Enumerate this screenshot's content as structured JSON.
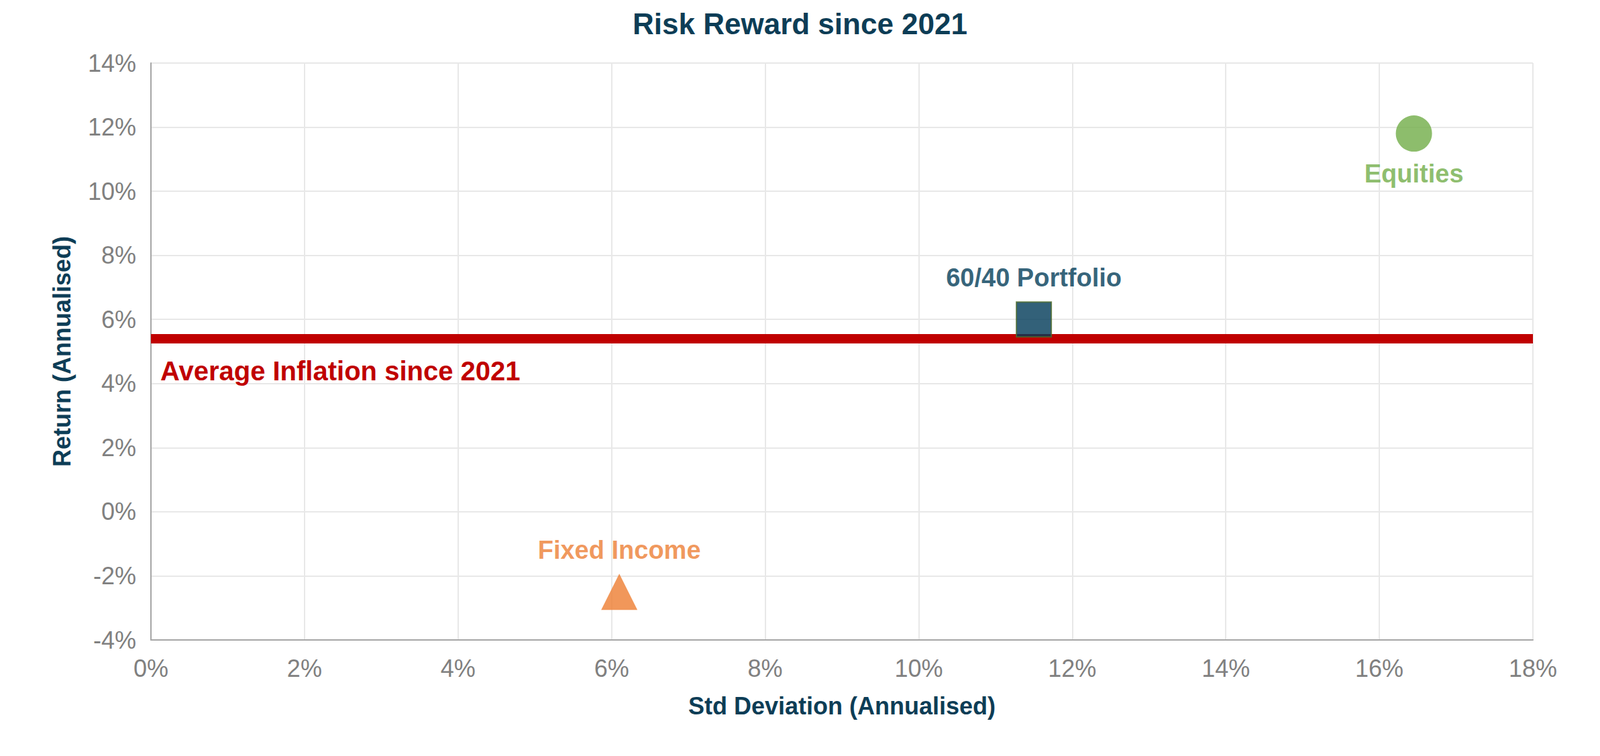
{
  "chart_data": {
    "type": "scatter",
    "title": "Risk Reward since 2021",
    "x_label": "Std Deviation (Annualised)",
    "y_label": "Return (Annualised)",
    "xlim": [
      0,
      18
    ],
    "xticks": [
      {
        "value": 0,
        "label": "0%"
      },
      {
        "value": 2,
        "label": "2%"
      },
      {
        "value": 4,
        "label": "4%"
      },
      {
        "value": 6,
        "label": "6%"
      },
      {
        "value": 8,
        "label": "8%"
      },
      {
        "value": 10,
        "label": "10%"
      },
      {
        "value": 12,
        "label": "12%"
      },
      {
        "value": 14,
        "label": "14%"
      },
      {
        "value": 16,
        "label": "16%"
      },
      {
        "value": 18,
        "label": "18%"
      }
    ],
    "ylim": [
      -4,
      14
    ],
    "yticks": [
      {
        "value": -4,
        "label": "-4%"
      },
      {
        "value": -2,
        "label": "-2%"
      },
      {
        "value": 0,
        "label": "0%"
      },
      {
        "value": 2,
        "label": "2%"
      },
      {
        "value": 4,
        "label": "4%"
      },
      {
        "value": 6,
        "label": "6%"
      },
      {
        "value": 8,
        "label": "8%"
      },
      {
        "value": 10,
        "label": "10%"
      },
      {
        "value": 12,
        "label": "12%"
      },
      {
        "value": 14,
        "label": "14%"
      }
    ],
    "grid": true,
    "series": [
      {
        "name": "Average Inflation since 2021",
        "type": "line",
        "color": "#c00000",
        "x": [
          0,
          18
        ],
        "values": [
          5.4,
          5.4
        ]
      },
      {
        "name": "Fixed Income",
        "type": "scatter",
        "marker": "triangle",
        "color": "#ed7d31",
        "x": [
          6.1
        ],
        "values": [
          -2.5
        ]
      },
      {
        "name": "60/40 Portfolio",
        "type": "scatter",
        "marker": "square",
        "color": "#003a57",
        "x": [
          11.5
        ],
        "values": [
          6.0
        ]
      },
      {
        "name": "Equities",
        "type": "scatter",
        "marker": "circle",
        "color": "#70ad47",
        "x": [
          16.45
        ],
        "values": [
          11.8
        ]
      }
    ]
  }
}
